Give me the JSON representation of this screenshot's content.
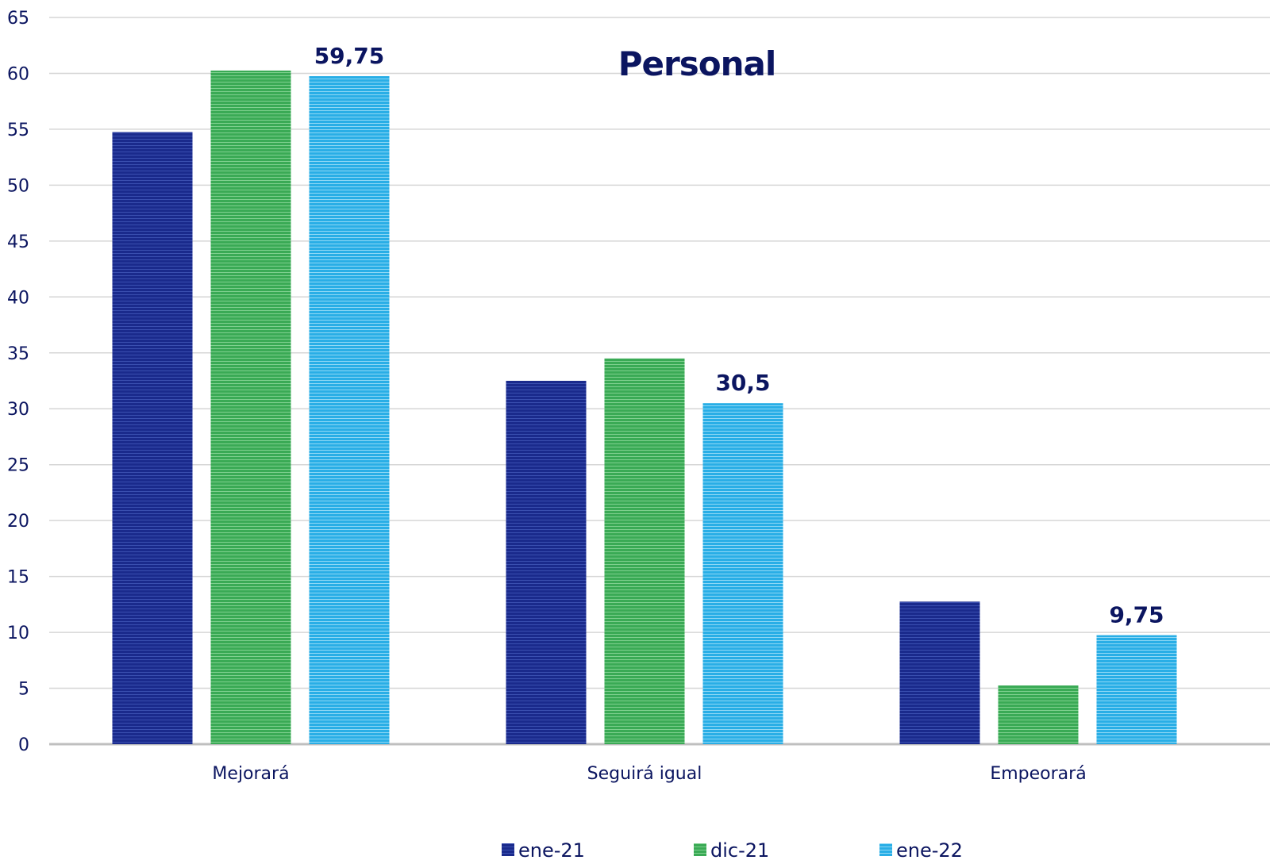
{
  "chart_data": {
    "type": "bar",
    "title": "Personal",
    "categories": [
      "Mejorará",
      "Seguirá igual",
      "Empeorará"
    ],
    "series": [
      {
        "name": "ene-21",
        "color": "#1a2a8c",
        "values": [
          54.75,
          32.5,
          12.75
        ]
      },
      {
        "name": "dic-21",
        "color": "#3aaa55",
        "values": [
          60.25,
          34.5,
          5.25
        ]
      },
      {
        "name": "ene-22",
        "color": "#29aee6",
        "values": [
          59.75,
          30.5,
          9.75
        ]
      }
    ],
    "data_labels": [
      {
        "series": "ene-22",
        "category": "Mejorará",
        "text": "59,75"
      },
      {
        "series": "ene-22",
        "category": "Seguirá igual",
        "text": "30,5"
      },
      {
        "series": "ene-22",
        "category": "Empeorará",
        "text": "9,75"
      }
    ],
    "ylim": [
      0,
      65
    ],
    "yticks": [
      "0",
      "5",
      "10",
      "15",
      "20",
      "25",
      "30",
      "35",
      "40",
      "45",
      "50",
      "55",
      "60",
      "65"
    ],
    "ytick_values": [
      0,
      5,
      10,
      15,
      20,
      25,
      30,
      35,
      40,
      45,
      50,
      55,
      60,
      65
    ],
    "xlabel": "",
    "ylabel": "",
    "grid": true,
    "legend": "bottom-center"
  }
}
